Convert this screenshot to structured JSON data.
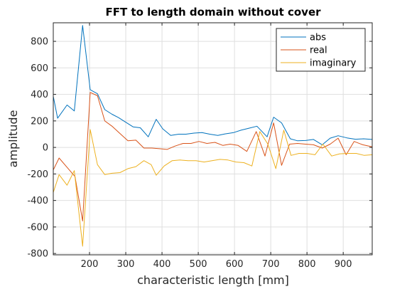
{
  "chart_data": {
    "type": "line",
    "title": "FFT to length domain without cover",
    "xlabel": "characteristic length [mm]",
    "ylabel": "amplitude",
    "xlim": [
      100,
      980
    ],
    "ylim": [
      -810,
      940
    ],
    "xticks": [
      200,
      300,
      400,
      500,
      600,
      700,
      800,
      900
    ],
    "yticks": [
      -800,
      -600,
      -400,
      -200,
      0,
      200,
      400,
      600,
      800
    ],
    "grid": true,
    "legend": "top-right",
    "series": [
      {
        "name": "abs",
        "color": "#0072bd",
        "points": [
          [
            100,
            385
          ],
          [
            112,
            220
          ],
          [
            138,
            320
          ],
          [
            158,
            275
          ],
          [
            181,
            920
          ],
          [
            202,
            435
          ],
          [
            222,
            405
          ],
          [
            242,
            285
          ],
          [
            262,
            250
          ],
          [
            280,
            225
          ],
          [
            300,
            190
          ],
          [
            320,
            155
          ],
          [
            340,
            148
          ],
          [
            362,
            80
          ],
          [
            384,
            212
          ],
          [
            402,
            140
          ],
          [
            424,
            90
          ],
          [
            446,
            100
          ],
          [
            466,
            100
          ],
          [
            488,
            108
          ],
          [
            510,
            112
          ],
          [
            532,
            100
          ],
          [
            554,
            90
          ],
          [
            574,
            102
          ],
          [
            598,
            112
          ],
          [
            618,
            130
          ],
          [
            640,
            145
          ],
          [
            662,
            160
          ],
          [
            690,
            80
          ],
          [
            708,
            228
          ],
          [
            730,
            185
          ],
          [
            754,
            65
          ],
          [
            774,
            50
          ],
          [
            796,
            52
          ],
          [
            818,
            60
          ],
          [
            842,
            20
          ],
          [
            864,
            70
          ],
          [
            886,
            88
          ],
          [
            910,
            72
          ],
          [
            934,
            62
          ],
          [
            956,
            65
          ],
          [
            980,
            60
          ]
        ]
      },
      {
        "name": "real",
        "color": "#d95319",
        "points": [
          [
            100,
            -170
          ],
          [
            116,
            -80
          ],
          [
            138,
            -150
          ],
          [
            160,
            -220
          ],
          [
            181,
            -555
          ],
          [
            202,
            415
          ],
          [
            222,
            390
          ],
          [
            242,
            200
          ],
          [
            262,
            160
          ],
          [
            286,
            100
          ],
          [
            306,
            50
          ],
          [
            328,
            55
          ],
          [
            350,
            -5
          ],
          [
            372,
            -5
          ],
          [
            396,
            -10
          ],
          [
            414,
            -15
          ],
          [
            436,
            10
          ],
          [
            458,
            30
          ],
          [
            480,
            30
          ],
          [
            502,
            45
          ],
          [
            524,
            30
          ],
          [
            546,
            38
          ],
          [
            568,
            15
          ],
          [
            588,
            25
          ],
          [
            610,
            15
          ],
          [
            634,
            -30
          ],
          [
            660,
            120
          ],
          [
            684,
            -65
          ],
          [
            708,
            185
          ],
          [
            730,
            -135
          ],
          [
            752,
            25
          ],
          [
            774,
            30
          ],
          [
            796,
            25
          ],
          [
            818,
            20
          ],
          [
            842,
            -5
          ],
          [
            864,
            25
          ],
          [
            886,
            70
          ],
          [
            908,
            -55
          ],
          [
            930,
            45
          ],
          [
            954,
            20
          ],
          [
            980,
            5
          ]
        ]
      },
      {
        "name": "imaginary",
        "color": "#edb120",
        "points": [
          [
            100,
            -340
          ],
          [
            116,
            -205
          ],
          [
            138,
            -285
          ],
          [
            158,
            -175
          ],
          [
            181,
            -745
          ],
          [
            202,
            135
          ],
          [
            222,
            -130
          ],
          [
            242,
            -205
          ],
          [
            262,
            -195
          ],
          [
            284,
            -190
          ],
          [
            306,
            -160
          ],
          [
            328,
            -145
          ],
          [
            350,
            -100
          ],
          [
            370,
            -130
          ],
          [
            384,
            -210
          ],
          [
            406,
            -140
          ],
          [
            428,
            -100
          ],
          [
            450,
            -95
          ],
          [
            472,
            -100
          ],
          [
            494,
            -100
          ],
          [
            516,
            -110
          ],
          [
            538,
            -100
          ],
          [
            560,
            -90
          ],
          [
            582,
            -95
          ],
          [
            604,
            -110
          ],
          [
            626,
            -115
          ],
          [
            648,
            -140
          ],
          [
            670,
            120
          ],
          [
            692,
            25
          ],
          [
            714,
            -160
          ],
          [
            736,
            130
          ],
          [
            756,
            -60
          ],
          [
            778,
            -45
          ],
          [
            800,
            -45
          ],
          [
            822,
            -55
          ],
          [
            844,
            25
          ],
          [
            868,
            -65
          ],
          [
            890,
            -48
          ],
          [
            912,
            -45
          ],
          [
            936,
            -45
          ],
          [
            958,
            -60
          ],
          [
            980,
            -55
          ]
        ]
      }
    ]
  }
}
